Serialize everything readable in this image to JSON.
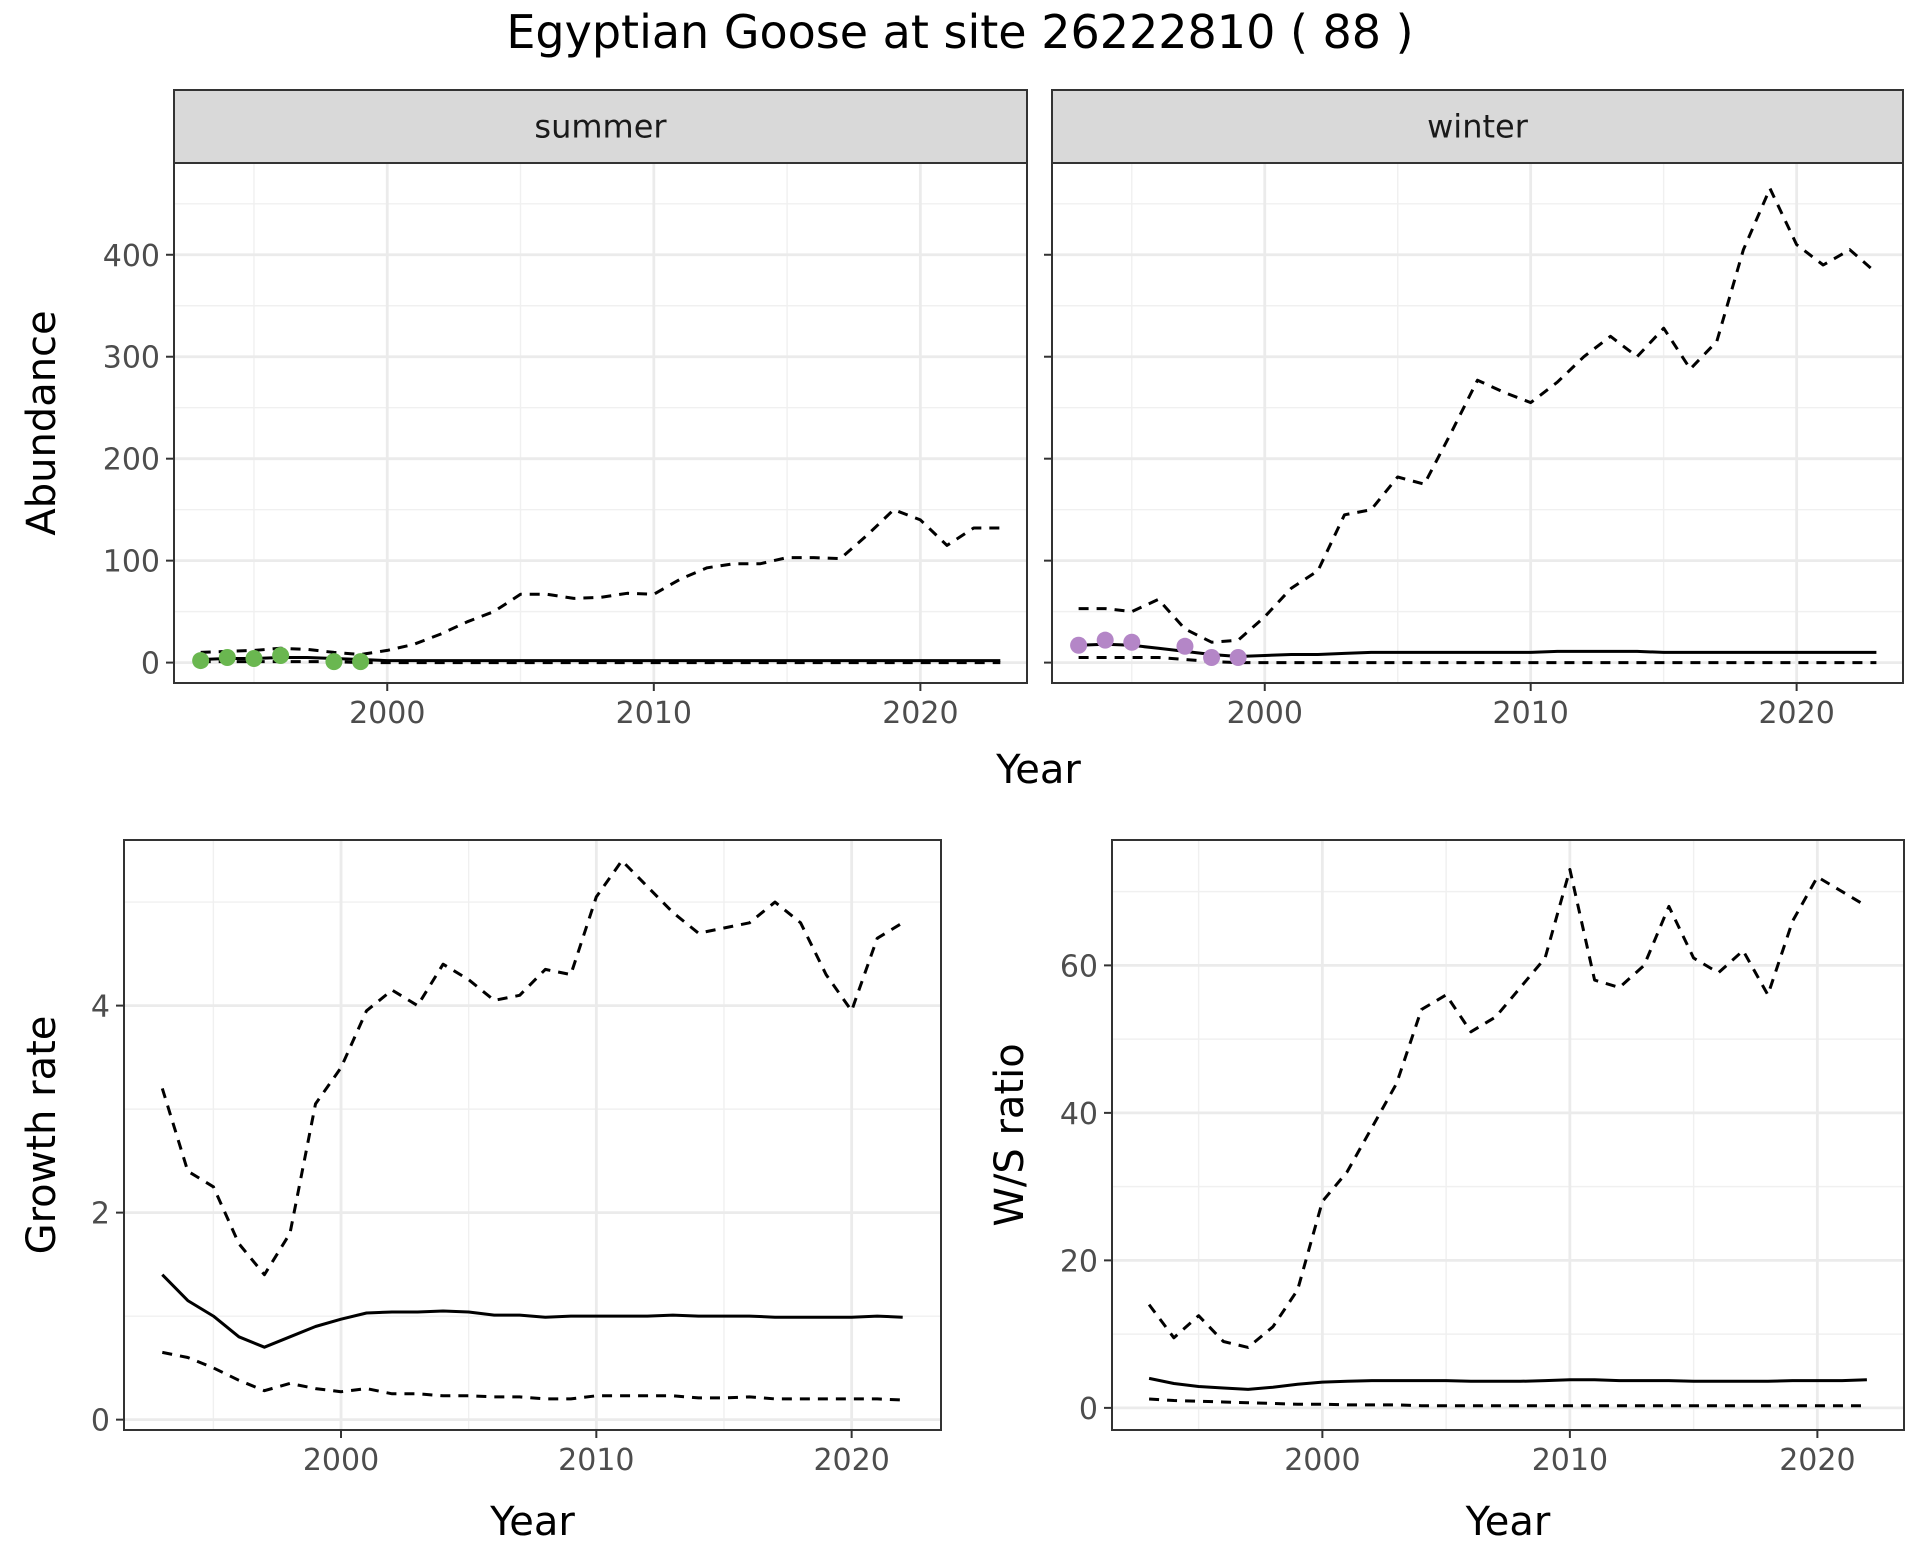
{
  "figure": {
    "title": "Egyptian Goose at site 26222810 ( 88 )"
  },
  "chart_data": [
    {
      "id": "abundance",
      "type": "line",
      "facets": [
        "summer",
        "winter"
      ],
      "xlabel": "Year",
      "ylabel": "Abundance",
      "xlim": [
        1992,
        2024
      ],
      "ylim": [
        -20,
        490
      ],
      "x_ticks": [
        2000,
        2010,
        2020
      ],
      "y_ticks": [
        0,
        100,
        200,
        300,
        400
      ],
      "grid": true,
      "x": [
        1993,
        1994,
        1995,
        1996,
        1997,
        1998,
        1999,
        2000,
        2001,
        2002,
        2003,
        2004,
        2005,
        2006,
        2007,
        2008,
        2009,
        2010,
        2011,
        2012,
        2013,
        2014,
        2015,
        2016,
        2017,
        2018,
        2019,
        2020,
        2021,
        2022,
        2023
      ],
      "panels": {
        "summer": {
          "upper": [
            10,
            11,
            12,
            14,
            13,
            10,
            8,
            12,
            18,
            28,
            40,
            50,
            67,
            67,
            63,
            64,
            68,
            67,
            82,
            93,
            97,
            97,
            103,
            103,
            102,
            125,
            150,
            140,
            115,
            132,
            132
          ],
          "mean": [
            3,
            4,
            4,
            5,
            5,
            4,
            3,
            2,
            2,
            2,
            2,
            2,
            2,
            2,
            2,
            2,
            2,
            2,
            2,
            2,
            2,
            2,
            2,
            2,
            2,
            2,
            2,
            2,
            2,
            2,
            2
          ],
          "lower": [
            1,
            1,
            1,
            1,
            1,
            1,
            0,
            0,
            0,
            0,
            0,
            0,
            0,
            0,
            0,
            0,
            0,
            0,
            0,
            0,
            0,
            0,
            0,
            0,
            0,
            0,
            0,
            0,
            0,
            0,
            0
          ],
          "points": {
            "color": "#6ab750",
            "x": [
              1993,
              1994,
              1995,
              1996,
              1998,
              1999
            ],
            "y": [
              2,
              5,
              4,
              7,
              1,
              1
            ]
          }
        },
        "winter": {
          "upper": [
            53,
            53,
            50,
            62,
            33,
            20,
            22,
            45,
            73,
            90,
            145,
            150,
            182,
            175,
            225,
            277,
            265,
            255,
            275,
            300,
            320,
            300,
            328,
            288,
            315,
            405,
            465,
            410,
            390,
            405,
            382
          ],
          "mean": [
            17,
            18,
            17,
            14,
            11,
            8,
            6,
            7,
            8,
            8,
            9,
            10,
            10,
            10,
            10,
            10,
            10,
            10,
            11,
            11,
            11,
            11,
            10,
            10,
            10,
            10,
            10,
            10,
            10,
            10,
            10
          ],
          "lower": [
            5,
            5,
            5,
            5,
            3,
            1,
            0,
            0,
            0,
            0,
            0,
            0,
            0,
            0,
            0,
            0,
            0,
            0,
            0,
            0,
            0,
            0,
            0,
            0,
            0,
            0,
            0,
            0,
            0,
            0,
            0
          ],
          "points": {
            "color": "#b486c7",
            "x": [
              1993,
              1994,
              1995,
              1997,
              1998,
              1999
            ],
            "y": [
              17,
              22,
              20,
              16,
              5,
              5
            ]
          }
        }
      }
    },
    {
      "id": "growth",
      "type": "line",
      "xlabel": "Year",
      "ylabel": "Growth rate",
      "xlim": [
        1991.5,
        2023.5
      ],
      "ylim": [
        -0.1,
        5.6
      ],
      "x_ticks": [
        2000,
        2010,
        2020
      ],
      "y_ticks": [
        0,
        2,
        4
      ],
      "grid": true,
      "x": [
        1993,
        1994,
        1995,
        1996,
        1997,
        1998,
        1999,
        2000,
        2001,
        2002,
        2003,
        2004,
        2005,
        2006,
        2007,
        2008,
        2009,
        2010,
        2011,
        2012,
        2013,
        2014,
        2015,
        2016,
        2017,
        2018,
        2019,
        2020,
        2021,
        2022
      ],
      "upper": [
        3.2,
        2.4,
        2.25,
        1.7,
        1.4,
        1.8,
        3.05,
        3.4,
        3.95,
        4.15,
        4.0,
        4.4,
        4.25,
        4.05,
        4.1,
        4.35,
        4.3,
        5.05,
        5.4,
        5.15,
        4.9,
        4.7,
        4.75,
        4.8,
        5.0,
        4.8,
        4.3,
        3.95,
        4.65,
        4.8
      ],
      "mean": [
        1.4,
        1.15,
        1.0,
        0.8,
        0.7,
        0.8,
        0.9,
        0.97,
        1.03,
        1.04,
        1.04,
        1.05,
        1.04,
        1.01,
        1.01,
        0.99,
        1.0,
        1.0,
        1.0,
        1.0,
        1.01,
        1.0,
        1.0,
        1.0,
        0.99,
        0.99,
        0.99,
        0.99,
        1.0,
        0.99
      ],
      "lower": [
        0.65,
        0.6,
        0.5,
        0.38,
        0.28,
        0.35,
        0.3,
        0.27,
        0.3,
        0.25,
        0.25,
        0.23,
        0.23,
        0.22,
        0.22,
        0.2,
        0.2,
        0.23,
        0.23,
        0.23,
        0.23,
        0.21,
        0.21,
        0.22,
        0.2,
        0.2,
        0.2,
        0.2,
        0.2,
        0.19
      ]
    },
    {
      "id": "ws-ratio",
      "type": "line",
      "xlabel": "Year",
      "ylabel": "W/S ratio",
      "xlim": [
        1991.5,
        2023.5
      ],
      "ylim": [
        -3,
        77
      ],
      "x_ticks": [
        2000,
        2010,
        2020
      ],
      "y_ticks": [
        0,
        20,
        40,
        60
      ],
      "grid": true,
      "x": [
        1993,
        1994,
        1995,
        1996,
        1997,
        1998,
        1999,
        2000,
        2001,
        2002,
        2003,
        2004,
        2005,
        2006,
        2007,
        2008,
        2009,
        2010,
        2011,
        2012,
        2013,
        2014,
        2015,
        2016,
        2017,
        2018,
        2019,
        2020,
        2021,
        2022
      ],
      "upper": [
        14,
        9.5,
        12.5,
        9,
        8.2,
        11,
        16,
        28,
        32,
        38,
        44,
        54,
        56,
        51,
        53,
        57,
        61,
        73,
        58,
        57,
        60,
        68,
        61,
        59,
        62,
        56,
        66,
        72,
        70,
        68
      ],
      "mean": [
        4,
        3.3,
        2.9,
        2.7,
        2.5,
        2.8,
        3.2,
        3.5,
        3.6,
        3.7,
        3.7,
        3.7,
        3.7,
        3.6,
        3.6,
        3.6,
        3.7,
        3.8,
        3.8,
        3.7,
        3.7,
        3.7,
        3.6,
        3.6,
        3.6,
        3.6,
        3.7,
        3.7,
        3.7,
        3.8
      ],
      "lower": [
        1.2,
        1.0,
        0.9,
        0.8,
        0.7,
        0.6,
        0.5,
        0.5,
        0.4,
        0.4,
        0.4,
        0.3,
        0.3,
        0.3,
        0.3,
        0.3,
        0.3,
        0.3,
        0.3,
        0.3,
        0.3,
        0.3,
        0.3,
        0.3,
        0.3,
        0.3,
        0.3,
        0.3,
        0.3,
        0.3
      ]
    }
  ]
}
